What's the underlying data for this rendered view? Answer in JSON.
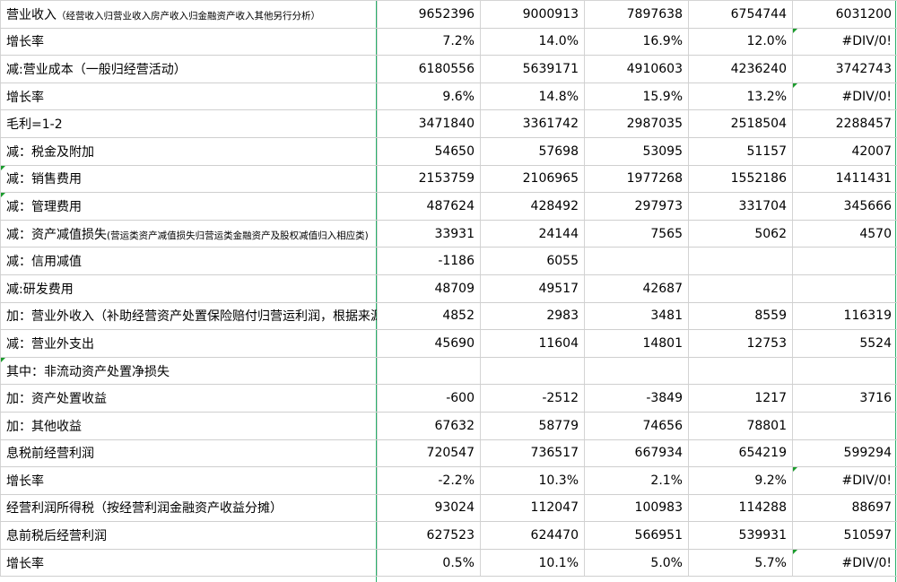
{
  "rows": [
    {
      "label": "营业收入",
      "note": "（经营收入归营业收入房产收入归金融资产收入其他另行分析）",
      "v": [
        "9652396",
        "9000913",
        "7897638",
        "6754744",
        "6031200"
      ],
      "style": [
        "big",
        "small",
        "small",
        "small",
        "small"
      ],
      "kind": "normal"
    },
    {
      "label": "增长率",
      "note": "",
      "v": [
        "7.2%",
        "14.0%",
        "16.9%",
        "12.0%",
        "#DIV/0!"
      ],
      "kind": "rate"
    },
    {
      "label": "减:营业成本（一般归经营活动）",
      "note": "",
      "v": [
        "6180556",
        "5639171",
        "4910603",
        "4236240",
        "3742743"
      ],
      "style": [
        "big",
        "small",
        "small",
        "small",
        "small"
      ],
      "kind": "normal"
    },
    {
      "label": "增长率",
      "note": "",
      "v": [
        "9.6%",
        "14.8%",
        "15.9%",
        "13.2%",
        "#DIV/0!"
      ],
      "kind": "rate"
    },
    {
      "label": "毛利=1-2",
      "note": "",
      "v": [
        "3471840",
        "3361742",
        "2987035",
        "2518504",
        "2288457"
      ],
      "style": [
        "big",
        "big",
        "big",
        "big",
        "big"
      ],
      "kind": "normal"
    },
    {
      "label": "减：税金及附加",
      "note": "",
      "v": [
        "54650",
        "57698",
        "53095",
        "51157",
        "42007"
      ],
      "style": [
        "big",
        "small",
        "small",
        "small",
        "small"
      ],
      "kind": "normal"
    },
    {
      "label": "减：销售费用",
      "note": "",
      "v": [
        "2153759",
        "2106965",
        "1977268",
        "1552186",
        "1411431"
      ],
      "style": [
        "big",
        "small",
        "small",
        "small",
        "small"
      ],
      "kind": "normal"
    },
    {
      "label": "减：管理费用",
      "note": "",
      "v": [
        "487624",
        "428492",
        "297973",
        "331704",
        "345666"
      ],
      "style": [
        "big",
        "small",
        "small",
        "small",
        "small"
      ],
      "kind": "normal"
    },
    {
      "label": "减：资产减值损失",
      "note": "(营运类资产减值损失归营运类金融资产及股权减值归入相应类)",
      "v": [
        "33931",
        "24144",
        "7565",
        "5062",
        "4570"
      ],
      "style": [
        "big",
        "big",
        "big",
        "small",
        "small"
      ],
      "kind": "normal"
    },
    {
      "label": "减：信用减值",
      "note": "",
      "v": [
        "-1186",
        "6055",
        "",
        "",
        ""
      ],
      "style": [
        "big",
        "big",
        "big",
        "big",
        "big"
      ],
      "kind": "normal"
    },
    {
      "label": "减:研发费用",
      "note": "",
      "v": [
        "48709",
        "49517",
        "42687",
        "",
        ""
      ],
      "style": [
        "big",
        "small",
        "small",
        "big",
        "big"
      ],
      "kind": "normal"
    },
    {
      "label": "加：营业外收入（补助经营资产处置保险赔付归营运利润，根据来源分析）",
      "note": "",
      "v": [
        "4852",
        "2983",
        "3481",
        "8559",
        "116319"
      ],
      "style": [
        "big",
        "small",
        "small",
        "big",
        "big"
      ],
      "kind": "normal"
    },
    {
      "label": "减：营业外支出",
      "note": "",
      "v": [
        "45690",
        "11604",
        "14801",
        "12753",
        "5524"
      ],
      "style": [
        "big",
        "small",
        "small",
        "small",
        "small"
      ],
      "kind": "normal"
    },
    {
      "label": "其中：非流动资产处置净损失",
      "note": "",
      "v": [
        "",
        "",
        "",
        "",
        ""
      ],
      "style": [
        "big",
        "big",
        "big",
        "big",
        "big"
      ],
      "kind": "indent"
    },
    {
      "label": "加：资产处置收益",
      "note": "",
      "v": [
        "-600",
        "-2512",
        "-3849",
        "1217",
        "3716"
      ],
      "style": [
        "big",
        "big",
        "big",
        "small",
        "small"
      ],
      "kind": "normal"
    },
    {
      "label": "加：其他收益",
      "note": "",
      "v": [
        "67632",
        "58779",
        "74656",
        "78801",
        ""
      ],
      "style": [
        "big",
        "big",
        "big",
        "big",
        "big"
      ],
      "kind": "normal"
    },
    {
      "label": "息税前经营利润",
      "note": "",
      "v": [
        "720547",
        "736517",
        "667934",
        "654219",
        "599294"
      ],
      "style": [
        "big",
        "big",
        "big",
        "big",
        "big"
      ],
      "kind": "normal"
    },
    {
      "label": "增长率",
      "note": "",
      "v": [
        "-2.2%",
        "10.3%",
        "2.1%",
        "9.2%",
        "#DIV/0!"
      ],
      "kind": "rate"
    },
    {
      "label": "经营利润所得税（按经营利润金融资产收益分摊）",
      "note": "",
      "v": [
        "93024",
        "112047",
        "100983",
        "114288",
        "88697"
      ],
      "style": [
        "big",
        "big",
        "big",
        "big",
        "big"
      ],
      "kind": "normal"
    },
    {
      "label": "息前税后经营利润",
      "note": "",
      "v": [
        "627523",
        "624470",
        "566951",
        "539931",
        "510597"
      ],
      "style": [
        "big",
        "big",
        "big",
        "big",
        "big"
      ],
      "kind": "normal"
    },
    {
      "label": "增长率",
      "note": "",
      "v": [
        "0.5%",
        "10.1%",
        "5.0%",
        "5.7%",
        "#DIV/0!"
      ],
      "kind": "rate"
    }
  ]
}
